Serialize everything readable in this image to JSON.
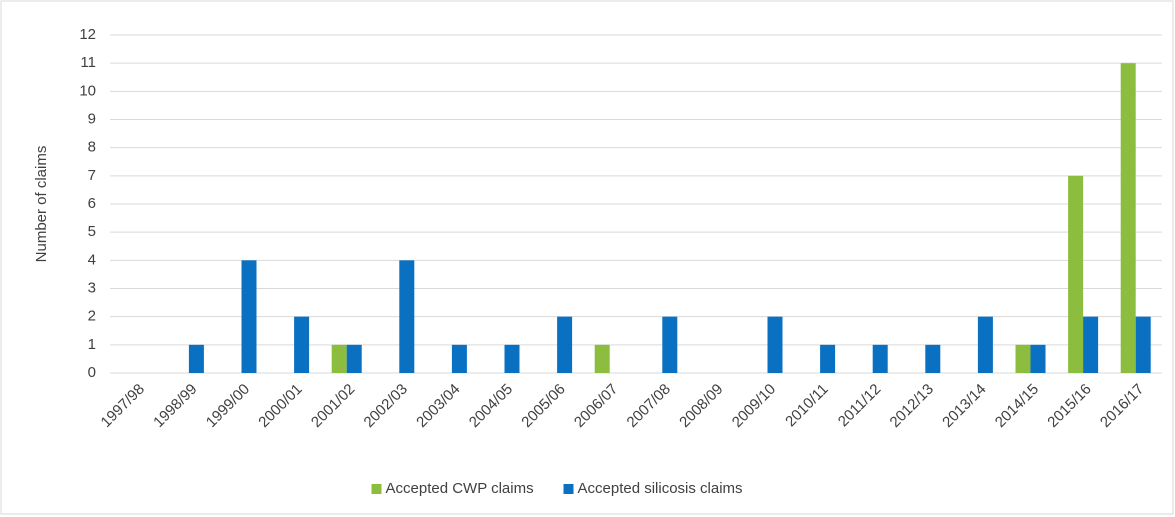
{
  "chart_data": {
    "type": "bar",
    "y_label": "Number of claims",
    "categories": [
      "1997/98",
      "1998/99",
      "1999/00",
      "2000/01",
      "2001/02",
      "2002/03",
      "2003/04",
      "2004/05",
      "2005/06",
      "2006/07",
      "2007/08",
      "2008/09",
      "2009/10",
      "2010/11",
      "2011/12",
      "2012/13",
      "2013/14",
      "2014/15",
      "2015/16",
      "2016/17"
    ],
    "series": [
      {
        "name": "Accepted CWP claims",
        "color": "#8cbd3f",
        "values": [
          0,
          0,
          0,
          0,
          1,
          0,
          0,
          0,
          0,
          1,
          0,
          0,
          0,
          0,
          0,
          0,
          0,
          1,
          7,
          11
        ]
      },
      {
        "name": "Accepted silicosis claims",
        "color": "#0a70c2",
        "values": [
          0,
          1,
          4,
          2,
          1,
          4,
          1,
          1,
          2,
          0,
          2,
          0,
          2,
          1,
          1,
          1,
          2,
          1,
          2,
          2
        ]
      }
    ],
    "ylim": [
      0,
      12
    ],
    "yticks": [
      0,
      1,
      2,
      3,
      4,
      5,
      6,
      7,
      8,
      9,
      10,
      11,
      12
    ],
    "grid": true,
    "legend": "bottom"
  }
}
